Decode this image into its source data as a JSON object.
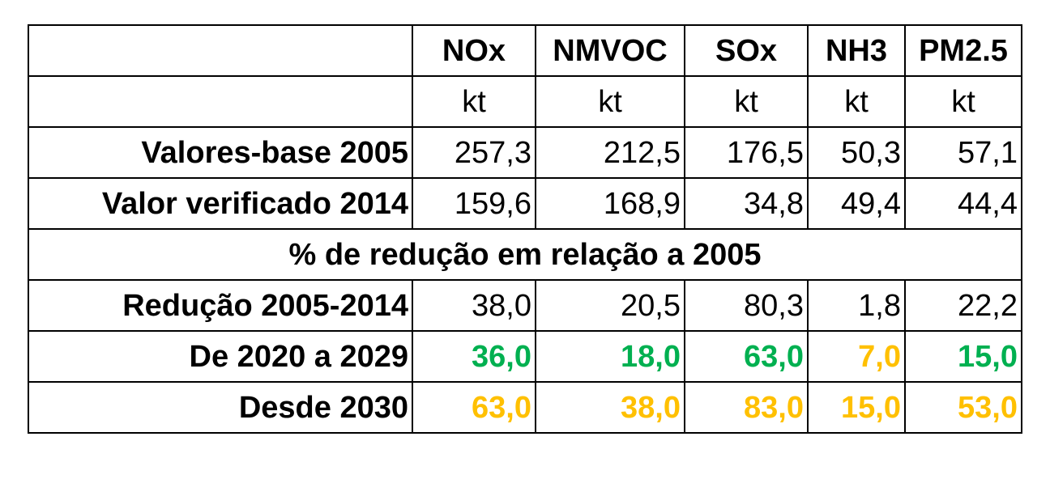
{
  "colors": {
    "green": "#00b050",
    "amber": "#ffc000",
    "black": "#000000"
  },
  "table": {
    "columns": [
      "NOx",
      "NMVOC",
      "SOx",
      "NH3",
      "PM2.5"
    ],
    "units": [
      "kt",
      "kt",
      "kt",
      "kt",
      "kt"
    ],
    "rows_absolute": [
      {
        "label": "Valores-base 2005",
        "values": [
          "257,3",
          "212,5",
          "176,5",
          "50,3",
          "57,1"
        ]
      },
      {
        "label": "Valor verificado 2014",
        "values": [
          "159,6",
          "168,9",
          "34,8",
          "49,4",
          "44,4"
        ]
      }
    ],
    "section_title": "% de redução em relação a 2005",
    "rows_reduction": [
      {
        "label": "Redução 2005-2014",
        "values": [
          "38,0",
          "20,5",
          "80,3",
          "1,8",
          "22,2"
        ]
      },
      {
        "label": "De 2020 a 2029",
        "values": [
          "36,0",
          "18,0",
          "63,0",
          "7,0",
          "15,0"
        ],
        "value_colors": [
          "green",
          "green",
          "green",
          "amber",
          "green"
        ]
      },
      {
        "label": "Desde 2030",
        "values": [
          "63,0",
          "38,0",
          "83,0",
          "15,0",
          "53,0"
        ],
        "value_colors": [
          "amber",
          "amber",
          "amber",
          "amber",
          "amber"
        ]
      }
    ]
  }
}
